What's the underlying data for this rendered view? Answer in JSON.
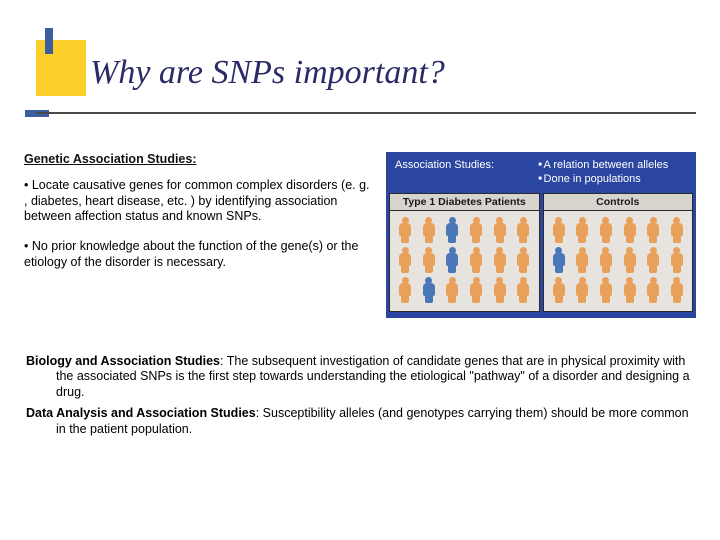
{
  "colors": {
    "accent_yellow": "#fccf2a",
    "accent_blue": "#3a5ea0",
    "figure_border": "#2a46a0",
    "panel_bg": "#e7e4e0",
    "panel_header_bg": "#d7d3cd",
    "title_color": "#2a2a66"
  },
  "title": "Why are SNPs important?",
  "left": {
    "subhead": "Genetic Association Studies:",
    "bullet1": "• Locate causative genes for common complex disorders (e. g. , diabetes, heart disease, etc. ) by identifying association between affection status and known SNPs.",
    "bullet2": "• No prior knowledge about the function of the gene(s) or the etiology of the disorder is necessary."
  },
  "figure": {
    "label": "Association Studies:",
    "bullet_a": "A relation between alleles",
    "bullet_b": "Done in populations",
    "panel_left_title": "Type 1 Diabetes Patients",
    "panel_right_title": "Controls",
    "people_left": [
      "#e9a05a",
      "#e9a05a",
      "#4a77b7",
      "#e9a05a",
      "#e9a05a",
      "#e9a05a",
      "#e9a05a",
      "#e9a05a",
      "#4a77b7",
      "#e9a05a",
      "#e9a05a",
      "#e9a05a",
      "#e9a05a",
      "#4a77b7",
      "#e9a05a",
      "#e9a05a",
      "#e9a05a",
      "#e9a05a"
    ],
    "people_right": [
      "#e9a05a",
      "#e9a05a",
      "#e9a05a",
      "#e9a05a",
      "#e9a05a",
      "#e9a05a",
      "#4a77b7",
      "#e9a05a",
      "#e9a05a",
      "#e9a05a",
      "#e9a05a",
      "#e9a05a",
      "#e9a05a",
      "#e9a05a",
      "#e9a05a",
      "#e9a05a",
      "#e9a05a",
      "#e9a05a"
    ]
  },
  "bottom": {
    "tag1": "Biology and Association Studies",
    "text1": ": The subsequent investigation of candidate genes that are in physical proximity with the associated SNPs is the first step towards understanding the etiological \"pathway\" of a disorder and designing a drug.",
    "tag2": "Data Analysis and Association Studies",
    "text2": ": Susceptibility alleles (and genotypes carrying them) should be more common in the patient population."
  }
}
